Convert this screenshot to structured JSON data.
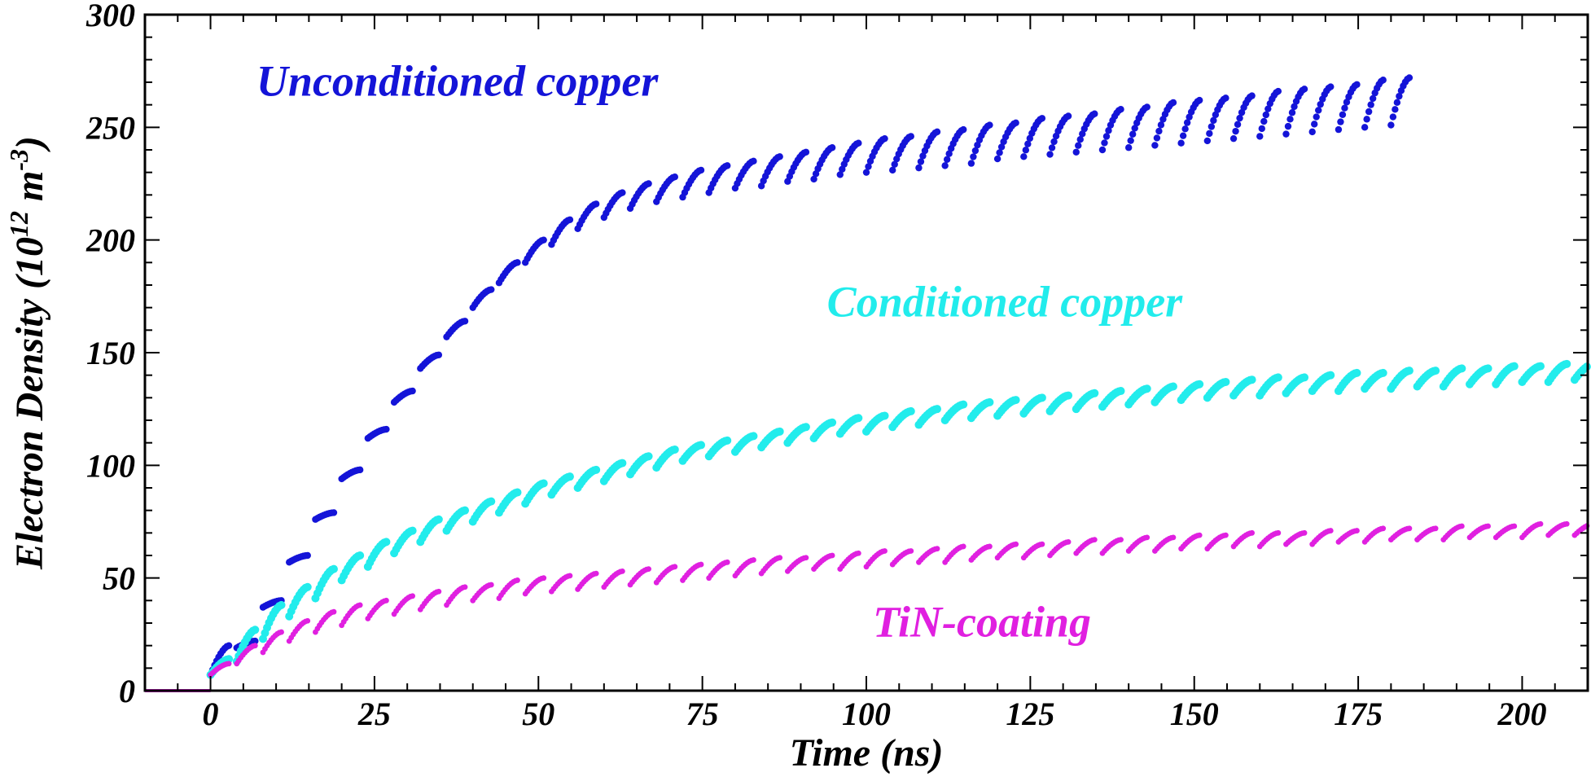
{
  "chart_data": {
    "type": "scatter",
    "title": "",
    "xlabel": "Time (ns)",
    "ylabel": {
      "main": "Electron Density (10",
      "exp1": "12",
      "mid": " m",
      "exp2": "-3",
      "end": ")"
    },
    "xlim": [
      -10,
      210
    ],
    "ylim": [
      0,
      300
    ],
    "xticks": [
      0,
      25,
      50,
      75,
      100,
      125,
      150,
      175,
      200
    ],
    "yticks": [
      0,
      50,
      100,
      150,
      200,
      250,
      300
    ],
    "grid": false,
    "legend": "none",
    "bunch_spacing_ns": 4,
    "series": [
      {
        "name": "Unconditioned copper",
        "color": "#1414d8",
        "x_range": [
          0,
          183
        ],
        "pre_bunch_level": 0,
        "bunch_start_values": [
          7,
          19,
          37,
          57,
          76,
          94,
          112,
          128,
          143,
          157,
          170,
          181,
          190,
          198,
          205,
          210,
          214,
          217,
          219,
          221,
          223,
          224,
          226,
          227,
          229,
          230,
          231,
          232,
          233,
          234,
          236,
          237,
          238,
          239,
          240,
          241,
          242,
          243,
          244,
          245,
          246,
          247,
          248,
          249,
          250,
          251
        ],
        "bunch_end_values": [
          20,
          22,
          40,
          60,
          79,
          98,
          116,
          133,
          149,
          164,
          178,
          190,
          200,
          209,
          216,
          221,
          225,
          228,
          231,
          233,
          235,
          237,
          239,
          241,
          243,
          245,
          246,
          248,
          249,
          251,
          252,
          254,
          255,
          256,
          258,
          259,
          261,
          262,
          263,
          264,
          266,
          267,
          268,
          269,
          271,
          272
        ]
      },
      {
        "name": "Conditioned copper",
        "color": "#22ecec",
        "x_range": [
          0,
          210
        ],
        "pre_bunch_level": 0,
        "bunch_start_values": [
          7,
          13,
          23,
          33,
          41,
          49,
          55,
          61,
          66,
          71,
          75,
          79,
          83,
          87,
          90,
          93,
          96,
          99,
          102,
          104,
          106,
          108,
          110,
          112,
          114,
          115,
          117,
          118,
          120,
          121,
          122,
          123,
          124,
          125,
          126,
          127,
          128,
          129,
          130,
          131,
          131,
          132,
          133,
          133,
          134,
          134,
          135,
          135,
          136,
          136,
          137,
          137,
          138
        ],
        "bunch_end_values": [
          14,
          27,
          38,
          46,
          54,
          60,
          66,
          71,
          76,
          80,
          84,
          88,
          92,
          95,
          98,
          101,
          104,
          107,
          109,
          111,
          113,
          115,
          117,
          119,
          121,
          122,
          124,
          125,
          127,
          128,
          129,
          130,
          131,
          132,
          133,
          134,
          135,
          136,
          137,
          138,
          139,
          139,
          140,
          141,
          141,
          142,
          142,
          143,
          143,
          144,
          144,
          145,
          145
        ]
      },
      {
        "name": "TiN-coating",
        "color": "#e020e0",
        "x_range": [
          0,
          210
        ],
        "pre_bunch_level": 0,
        "bunch_start_values": [
          7,
          12,
          17,
          22,
          26,
          29,
          32,
          34,
          36,
          38,
          40,
          41,
          43,
          44,
          45,
          46,
          47,
          48,
          49,
          50,
          51,
          52,
          53,
          54,
          54,
          55,
          56,
          57,
          57,
          58,
          59,
          59,
          60,
          61,
          61,
          62,
          62,
          63,
          63,
          64,
          64,
          65,
          65,
          66,
          66,
          67,
          67,
          67,
          68,
          68,
          68,
          69,
          69
        ],
        "bunch_end_values": [
          12,
          20,
          26,
          31,
          35,
          38,
          40,
          42,
          44,
          46,
          47,
          49,
          50,
          51,
          52,
          53,
          54,
          55,
          56,
          57,
          58,
          59,
          59,
          60,
          61,
          62,
          62,
          63,
          64,
          64,
          65,
          65,
          66,
          67,
          67,
          68,
          68,
          69,
          69,
          70,
          70,
          70,
          71,
          71,
          72,
          72,
          72,
          73,
          73,
          73,
          74,
          74,
          74
        ]
      }
    ],
    "annotations": [
      {
        "text": "Unconditioned copper",
        "color": "#1414d8",
        "x": 7,
        "y": 264
      },
      {
        "text": "Conditioned copper",
        "color": "#22ecec",
        "x": 94,
        "y": 166
      },
      {
        "text": "TiN-coating",
        "color": "#e020e0",
        "x": 101,
        "y": 24
      }
    ]
  }
}
